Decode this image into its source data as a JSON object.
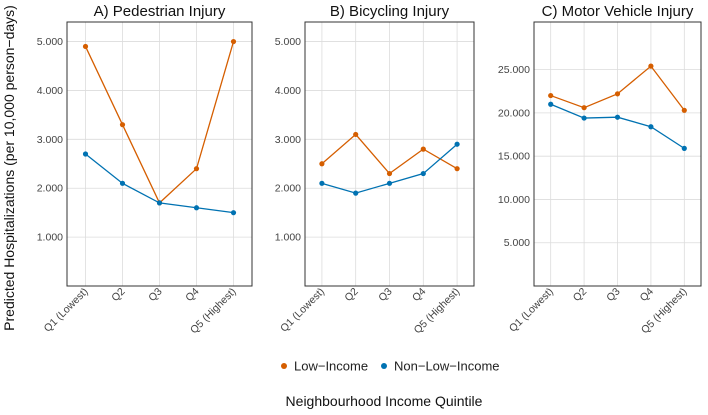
{
  "chart_data": [
    {
      "type": "line",
      "title": "A) Pedestrian Injury",
      "categories": [
        "Q1 (Lowest)",
        "Q2",
        "Q3",
        "Q4",
        "Q5 (Highest)"
      ],
      "ylim": [
        0,
        5.4
      ],
      "yticks": [
        1,
        2,
        3,
        4,
        5
      ],
      "ytick_labels": [
        "1.000",
        "2.000",
        "3.000",
        "4.000",
        "5.000"
      ],
      "series": [
        {
          "name": "Low−Income",
          "color": "#D55E00",
          "values": [
            4.9,
            3.3,
            1.7,
            2.4,
            5.0
          ]
        },
        {
          "name": "Non−Low−Income",
          "color": "#0072B2",
          "values": [
            2.7,
            2.1,
            1.7,
            1.6,
            1.5
          ]
        }
      ]
    },
    {
      "type": "line",
      "title": "B) Bicycling Injury",
      "categories": [
        "Q1 (Lowest)",
        "Q2",
        "Q3",
        "Q4",
        "Q5 (Highest)"
      ],
      "ylim": [
        0,
        5.4
      ],
      "yticks": [
        1,
        2,
        3,
        4,
        5
      ],
      "ytick_labels": [
        "1.000",
        "2.000",
        "3.000",
        "4.000",
        "5.000"
      ],
      "series": [
        {
          "name": "Low−Income",
          "color": "#D55E00",
          "values": [
            2.5,
            3.1,
            2.3,
            2.8,
            2.4
          ]
        },
        {
          "name": "Non−Low−Income",
          "color": "#0072B2",
          "values": [
            2.1,
            1.9,
            2.1,
            2.3,
            2.9
          ]
        }
      ]
    },
    {
      "type": "line",
      "title": "C) Motor Vehicle Injury",
      "categories": [
        "Q1 (Lowest)",
        "Q2",
        "Q3",
        "Q4",
        "Q5 (Highest)"
      ],
      "ylim": [
        0,
        30.5
      ],
      "yticks": [
        5,
        10,
        15,
        20,
        25
      ],
      "ytick_labels": [
        "5.000",
        "10.000",
        "15.000",
        "20.000",
        "25.000"
      ],
      "series": [
        {
          "name": "Low−Income",
          "color": "#D55E00",
          "values": [
            22.0,
            20.6,
            22.2,
            25.4,
            20.3
          ]
        },
        {
          "name": "Non−Low−Income",
          "color": "#0072B2",
          "values": [
            21.0,
            19.4,
            19.5,
            18.4,
            15.9
          ]
        }
      ]
    }
  ],
  "ylabel": "Predicted Hospitalizations (per 10,000 person−days)",
  "xlabel": "Neighbourhood Income Quintile",
  "legend": {
    "position": "bottom",
    "items": [
      {
        "label": "Low−Income",
        "color": "#D55E00"
      },
      {
        "label": "Non−Low−Income",
        "color": "#0072B2"
      }
    ]
  }
}
